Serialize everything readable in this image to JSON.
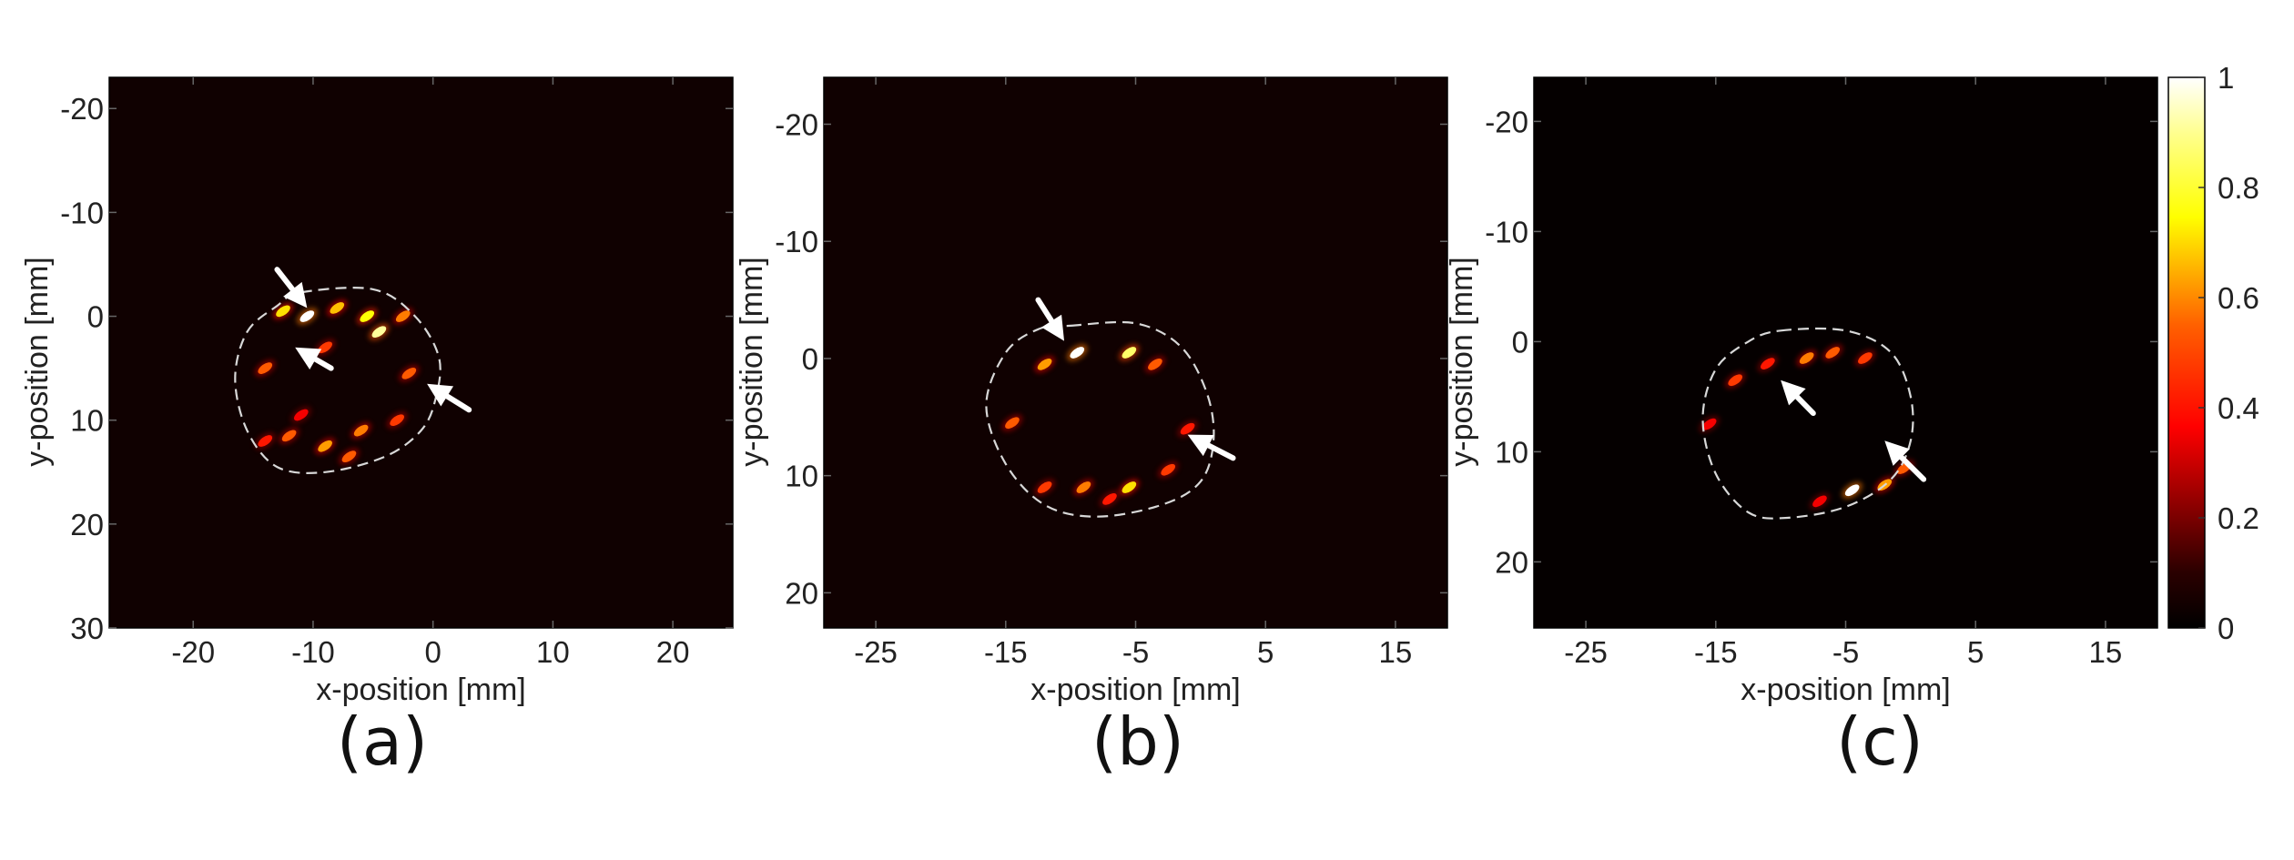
{
  "chart_data": [
    {
      "type": "heatmap",
      "panel_label": "(a)",
      "xlabel": "x-position [mm]",
      "ylabel": "y-position [mm]",
      "xlim": [
        -27,
        25
      ],
      "ylim": [
        -23,
        30
      ],
      "y_inverted": true,
      "xticks": [
        -20,
        -10,
        0,
        10,
        20
      ],
      "yticks": [
        -20,
        -10,
        0,
        10,
        20,
        30
      ],
      "xtick_labels": [
        "-20",
        "-10",
        "0",
        "10",
        "20"
      ],
      "ytick_labels": [
        "-20",
        "-10",
        "0",
        "10",
        "20",
        "30"
      ],
      "tumor_outline": [
        [
          -11,
          -2.3
        ],
        [
          -5,
          -2.6
        ],
        [
          -1.5,
          0
        ],
        [
          0.5,
          4
        ],
        [
          0.2,
          8
        ],
        [
          -1,
          11
        ],
        [
          -4,
          13.5
        ],
        [
          -9,
          15
        ],
        [
          -13,
          14.5
        ],
        [
          -15.5,
          11
        ],
        [
          -16.5,
          6
        ],
        [
          -15.5,
          1.5
        ],
        [
          -13,
          -1
        ]
      ],
      "hotspots": [
        {
          "x": -12.5,
          "y": -0.5,
          "v": 0.7
        },
        {
          "x": -10.5,
          "y": 0,
          "v": 1.0
        },
        {
          "x": -8,
          "y": -0.8,
          "v": 0.65
        },
        {
          "x": -5.5,
          "y": 0,
          "v": 0.75
        },
        {
          "x": -4.5,
          "y": 1.5,
          "v": 0.9
        },
        {
          "x": -2.5,
          "y": 0,
          "v": 0.55
        },
        {
          "x": -14,
          "y": 5,
          "v": 0.5
        },
        {
          "x": -9,
          "y": 3,
          "v": 0.45
        },
        {
          "x": -2,
          "y": 5.5,
          "v": 0.5
        },
        {
          "x": -12,
          "y": 11.5,
          "v": 0.5
        },
        {
          "x": -9,
          "y": 12.5,
          "v": 0.6
        },
        {
          "x": -6,
          "y": 11,
          "v": 0.55
        },
        {
          "x": -3,
          "y": 10,
          "v": 0.45
        },
        {
          "x": -14,
          "y": 12,
          "v": 0.4
        },
        {
          "x": -11,
          "y": 9.5,
          "v": 0.35
        },
        {
          "x": -7,
          "y": 13.5,
          "v": 0.5
        }
      ],
      "arrows": [
        {
          "from": [
            -13,
            -4.5
          ],
          "to": [
            -10.5,
            -0.8
          ]
        },
        {
          "from": [
            -8.5,
            5
          ],
          "to": [
            -11.5,
            3
          ]
        },
        {
          "from": [
            3,
            9
          ],
          "to": [
            -0.5,
            6.5
          ]
        }
      ]
    },
    {
      "type": "heatmap",
      "panel_label": "(b)",
      "xlabel": "x-position [mm]",
      "ylabel": "y-position [mm]",
      "xlim": [
        -29,
        19
      ],
      "ylim": [
        -24,
        23
      ],
      "y_inverted": true,
      "xticks": [
        -25,
        -15,
        -5,
        5,
        15
      ],
      "yticks": [
        -20,
        -10,
        0,
        10,
        20
      ],
      "xtick_labels": [
        "-25",
        "-15",
        "-5",
        "5",
        "15"
      ],
      "ytick_labels": [
        "-20",
        "-10",
        "0",
        "10",
        "20"
      ],
      "tumor_outline": [
        [
          -10,
          -2.8
        ],
        [
          -5,
          -3
        ],
        [
          -1.5,
          -1
        ],
        [
          0.5,
          3
        ],
        [
          1,
          7
        ],
        [
          0,
          10.5
        ],
        [
          -3,
          12.5
        ],
        [
          -8,
          13.5
        ],
        [
          -12,
          12.5
        ],
        [
          -15,
          9
        ],
        [
          -16.5,
          4
        ],
        [
          -15,
          -0.5
        ],
        [
          -12.5,
          -2.5
        ]
      ],
      "hotspots": [
        {
          "x": -12,
          "y": 0.5,
          "v": 0.6
        },
        {
          "x": -9.5,
          "y": -0.5,
          "v": 1.0
        },
        {
          "x": -5.5,
          "y": -0.5,
          "v": 0.85
        },
        {
          "x": -3.5,
          "y": 0.5,
          "v": 0.5
        },
        {
          "x": -14.5,
          "y": 5.5,
          "v": 0.5
        },
        {
          "x": -1,
          "y": 6,
          "v": 0.4
        },
        {
          "x": -12,
          "y": 11,
          "v": 0.45
        },
        {
          "x": -9,
          "y": 11,
          "v": 0.55
        },
        {
          "x": -5.5,
          "y": 11,
          "v": 0.7
        },
        {
          "x": -2.5,
          "y": 9.5,
          "v": 0.45
        },
        {
          "x": -7,
          "y": 12,
          "v": 0.4
        }
      ],
      "arrows": [
        {
          "from": [
            -12.5,
            -5
          ],
          "to": [
            -10.5,
            -1.5
          ]
        },
        {
          "from": [
            2.5,
            8.5
          ],
          "to": [
            -1,
            6.5
          ]
        }
      ]
    },
    {
      "type": "heatmap",
      "panel_label": "(c)",
      "xlabel": "x-position [mm]",
      "ylabel": "y-position [mm]",
      "xlim": [
        -29,
        19
      ],
      "ylim": [
        -24,
        26
      ],
      "y_inverted": true,
      "xticks": [
        -25,
        -15,
        -5,
        5,
        15
      ],
      "yticks": [
        -20,
        -10,
        0,
        10,
        20
      ],
      "xtick_labels": [
        "-25",
        "-15",
        "-5",
        "5",
        "15"
      ],
      "ytick_labels": [
        "-20",
        "-10",
        "0",
        "10",
        "20"
      ],
      "colorbar": {
        "min": 0,
        "max": 1,
        "ticks": [
          "0",
          "0.2",
          "0.4",
          "0.6",
          "0.8",
          "1"
        ]
      },
      "tumor_outline": [
        [
          -10,
          -1
        ],
        [
          -5,
          -1
        ],
        [
          -1.5,
          1
        ],
        [
          0,
          5
        ],
        [
          0,
          9
        ],
        [
          -1.5,
          12.5
        ],
        [
          -5,
          15
        ],
        [
          -9.5,
          16
        ],
        [
          -12.5,
          15.5
        ],
        [
          -15,
          12
        ],
        [
          -16,
          7
        ],
        [
          -15,
          2.5
        ],
        [
          -12.5,
          0
        ]
      ],
      "hotspots": [
        {
          "x": -13.5,
          "y": 3.5,
          "v": 0.45
        },
        {
          "x": -11,
          "y": 2,
          "v": 0.4
        },
        {
          "x": -8,
          "y": 1.5,
          "v": 0.55
        },
        {
          "x": -6,
          "y": 1,
          "v": 0.5
        },
        {
          "x": -3.5,
          "y": 1.5,
          "v": 0.45
        },
        {
          "x": -15.5,
          "y": 7.5,
          "v": 0.35
        },
        {
          "x": -4.5,
          "y": 13.5,
          "v": 1.0
        },
        {
          "x": -2,
          "y": 13,
          "v": 0.6
        },
        {
          "x": -0.5,
          "y": 11.5,
          "v": 0.5
        },
        {
          "x": -7,
          "y": 14.5,
          "v": 0.35
        }
      ],
      "arrows": [
        {
          "from": [
            -7.5,
            6.5
          ],
          "to": [
            -10,
            3.5
          ]
        },
        {
          "from": [
            1,
            12.5
          ],
          "to": [
            -2,
            9
          ]
        }
      ]
    }
  ]
}
